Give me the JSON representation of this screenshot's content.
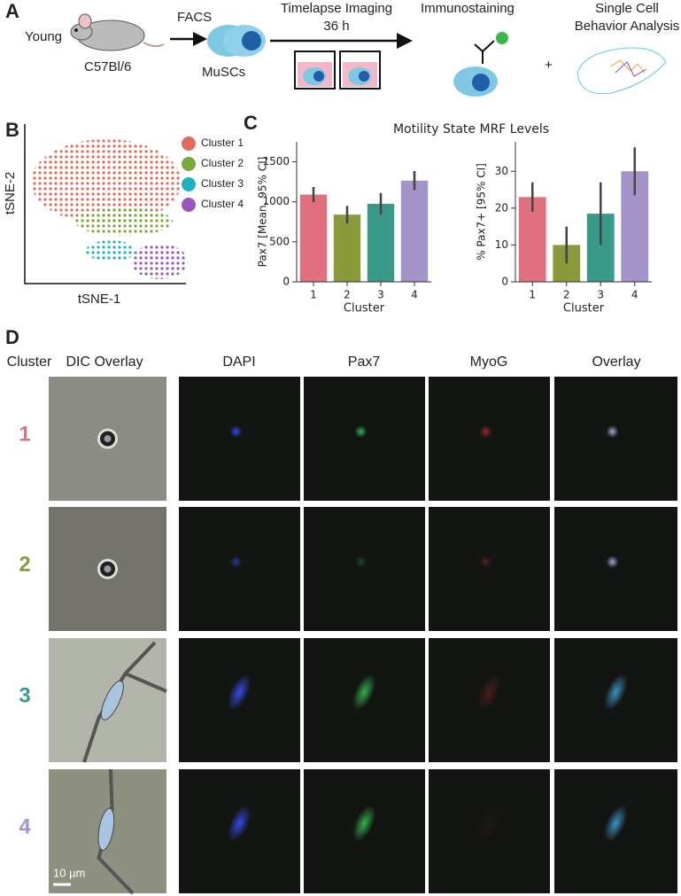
{
  "panel_labels": [
    "A",
    "B",
    "C",
    "D"
  ],
  "panel_a": {
    "young": "Young",
    "strain": "C57Bl/6",
    "facs": "FACS",
    "muscs": "MuSCs",
    "timelapse": "Timelapse Imaging",
    "duration": "36 h",
    "immuno": "Immunostaining",
    "plus": "+",
    "analysis": [
      "Single Cell",
      "Behavior Analysis"
    ]
  },
  "panel_b": {
    "legend": [
      "Cluster 1",
      "Cluster 2",
      "Cluster 3",
      "Cluster 4"
    ],
    "x_label": "tSNE-1",
    "y_label": "tSNE-2"
  },
  "panel_c": {
    "title": "Motility State MRF Levels"
  },
  "chart_data": [
    {
      "type": "bar",
      "categories": [
        "1",
        "2",
        "3",
        "4"
      ],
      "values": [
        1090,
        840,
        975,
        1265
      ],
      "errors": [
        95,
        110,
        135,
        120
      ],
      "colors": [
        "#e0707e",
        "#8a9a3a",
        "#3a9a8a",
        "#a493c9"
      ],
      "ylim": [
        0,
        1750
      ],
      "yticks": [
        0,
        500,
        1000,
        1500
      ],
      "y_label": "Pax7 [Mean, 95% CI]",
      "x_label": "Cluster"
    },
    {
      "type": "bar",
      "categories": [
        "1",
        "2",
        "3",
        "4"
      ],
      "values": [
        23,
        10,
        18.5,
        30
      ],
      "errors": [
        4,
        5,
        8.5,
        6.5
      ],
      "colors": [
        "#e0707e",
        "#8a9a3a",
        "#3a9a8a",
        "#a493c9"
      ],
      "ylim": [
        0,
        38
      ],
      "yticks": [
        0,
        10,
        20,
        30
      ],
      "y_label": "% Pax7+ [95% CI]",
      "x_label": "Cluster"
    }
  ],
  "panel_d": {
    "headers": [
      "Cluster",
      "DIC Overlay",
      "DAPI",
      "Pax7",
      "MyoG",
      "Overlay"
    ],
    "rows": [
      "1",
      "2",
      "3",
      "4"
    ],
    "scale_bar": "10 µm"
  }
}
